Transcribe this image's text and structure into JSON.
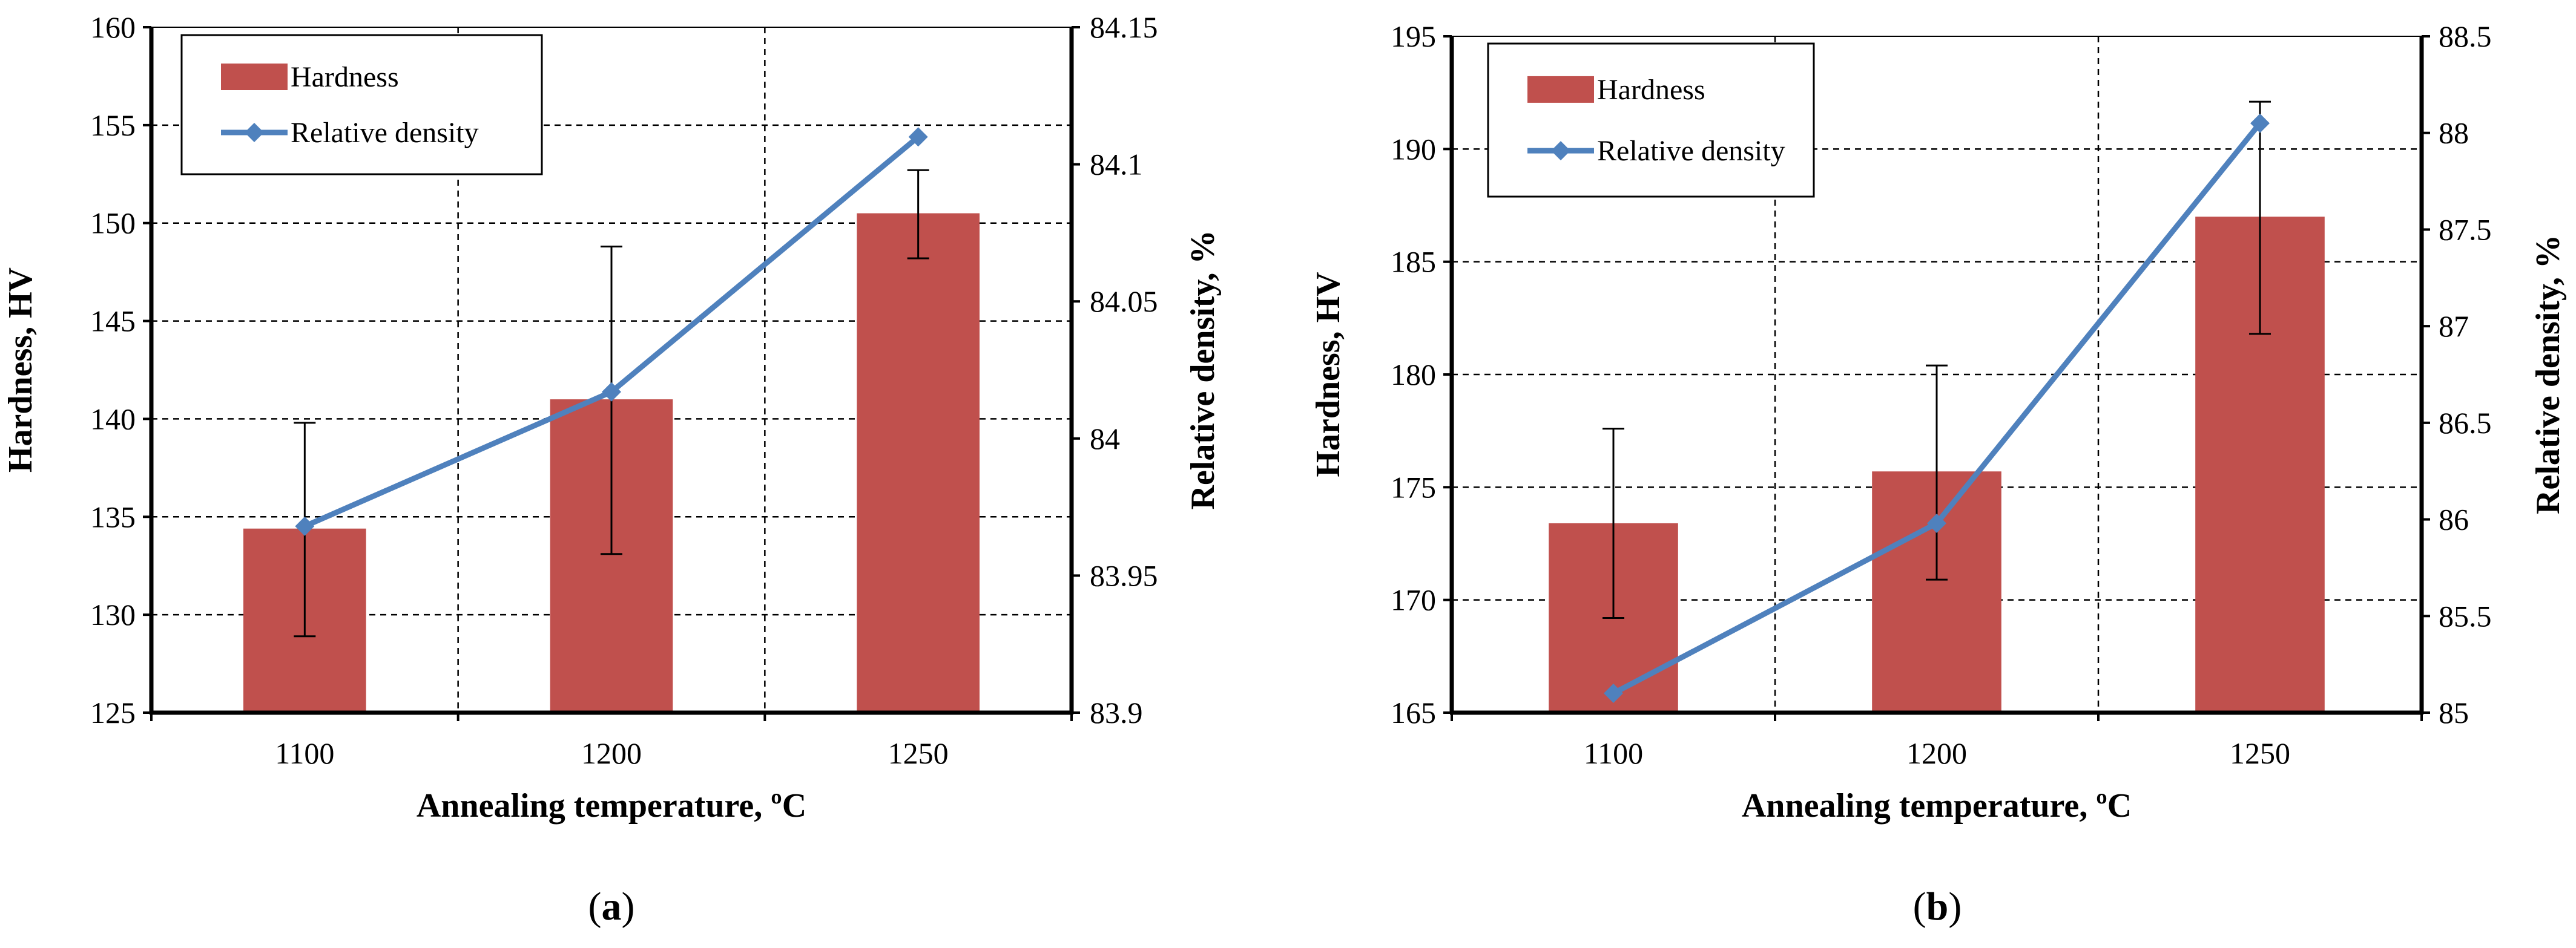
{
  "chart_data": [
    {
      "type": "bar",
      "caption": "(a)",
      "caption_letter": "a",
      "categories": [
        "1100",
        "1200",
        "1250"
      ],
      "xlabel": "Annealing temperature, ºC",
      "ylabel": "Hardness, HV",
      "y2label": "Relative density, %",
      "ylim": [
        125,
        160
      ],
      "yticks": [
        "125",
        "130",
        "135",
        "140",
        "145",
        "150",
        "155",
        "160"
      ],
      "y2lim": [
        83.9,
        84.15
      ],
      "y2ticks": [
        "83.9",
        "83.95",
        "84",
        "84.05",
        "84.1",
        "84.15"
      ],
      "grid": true,
      "legend_position": "top-left",
      "series": [
        {
          "name": "Hardness",
          "type": "bar",
          "axis": "left",
          "color": "#c0504d",
          "values": [
            134.4,
            141.0,
            150.5
          ],
          "error_low": [
            128.9,
            133.1,
            148.2
          ],
          "error_high": [
            139.8,
            148.8,
            152.7
          ]
        },
        {
          "name": "Relative density",
          "type": "line",
          "axis": "right",
          "color": "#4f81bd",
          "marker": "diamond",
          "values": [
            83.968,
            84.017,
            84.11
          ]
        }
      ]
    },
    {
      "type": "bar",
      "caption": "(b)",
      "caption_letter": "b",
      "categories": [
        "1100",
        "1200",
        "1250"
      ],
      "xlabel": "Annealing temperature, ºC",
      "ylabel": "Hardness, HV",
      "y2label": "Relative density, %",
      "ylim": [
        165,
        195
      ],
      "yticks": [
        "165",
        "170",
        "175",
        "180",
        "185",
        "190",
        "195"
      ],
      "y2lim": [
        85,
        88.5
      ],
      "y2ticks": [
        "85",
        "85.5",
        "86",
        "86.5",
        "87",
        "87.5",
        "88",
        "88.5"
      ],
      "grid": true,
      "legend_position": "top-left",
      "series": [
        {
          "name": "Hardness",
          "type": "bar",
          "axis": "left",
          "color": "#c0504d",
          "values": [
            173.4,
            175.7,
            187.0
          ],
          "error_low": [
            169.2,
            170.9,
            181.8
          ],
          "error_high": [
            177.6,
            180.4,
            192.1
          ]
        },
        {
          "name": "Relative density",
          "type": "line",
          "axis": "right",
          "color": "#4f81bd",
          "marker": "diamond",
          "values": [
            85.1,
            85.98,
            88.05
          ]
        }
      ]
    }
  ]
}
